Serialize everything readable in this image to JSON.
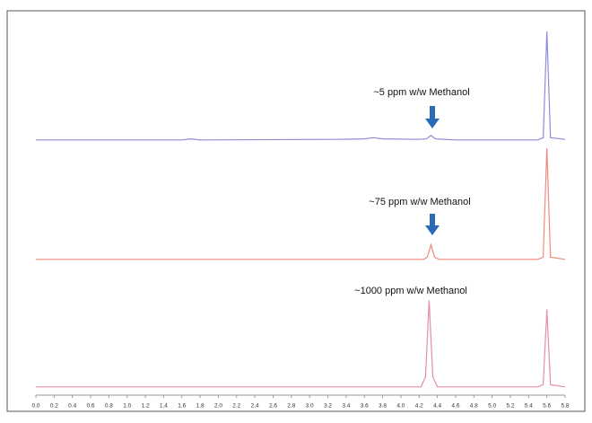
{
  "chart_data": [
    {
      "type": "line",
      "annotation": "~5 ppm w/w Methanol",
      "x": [
        0.0,
        1.6,
        1.7,
        1.8,
        3.3,
        3.6,
        3.7,
        3.8,
        4.2,
        4.28,
        4.33,
        4.38,
        4.6,
        4.7,
        5.5,
        5.56,
        5.6,
        5.64,
        5.8
      ],
      "series": [
        {
          "color": "#8c8cd8",
          "values": [
            1,
            1,
            2,
            1,
            1.5,
            2,
            3,
            2,
            1.5,
            2,
            5,
            2,
            1,
            1,
            1,
            3,
            100,
            3,
            1.5
          ]
        }
      ],
      "xlim": [
        0,
        5.8
      ],
      "ylim": [
        0,
        100
      ]
    },
    {
      "type": "line",
      "annotation": "~75 ppm w/w Methanol",
      "x": [
        0.0,
        4.25,
        4.29,
        4.33,
        4.37,
        4.42,
        5.5,
        5.56,
        5.6,
        5.64,
        5.8
      ],
      "series": [
        {
          "color": "#f08a80",
          "values": [
            1,
            1,
            3,
            14,
            3,
            1,
            1,
            3,
            100,
            3,
            1
          ]
        }
      ],
      "xlim": [
        0,
        5.8
      ],
      "ylim": [
        0,
        100
      ]
    },
    {
      "type": "line",
      "annotation": "~1000 ppm w/w Methanol",
      "x": [
        0.0,
        4.22,
        4.27,
        4.31,
        4.35,
        4.4,
        5.5,
        5.56,
        5.6,
        5.64,
        5.8
      ],
      "series": [
        {
          "color": "#e38db2",
          "values": [
            1,
            1,
            10,
            78,
            10,
            1,
            1,
            3,
            70,
            3,
            1
          ]
        }
      ],
      "xlim": [
        0,
        5.8
      ],
      "ylim": [
        0,
        100
      ],
      "xticks": [
        {
          "value": 0,
          "label": "0.0"
        },
        0.2,
        0.4,
        0.6,
        0.8,
        {
          "value": 1,
          "label": "1.0"
        },
        1.2,
        1.4,
        1.6,
        1.8,
        {
          "value": 2,
          "label": "2.0"
        },
        2.2,
        2.4,
        2.6,
        2.8,
        {
          "value": 3,
          "label": "3.0"
        },
        3.2,
        3.4,
        3.6,
        3.8,
        {
          "value": 4,
          "label": "4.0"
        },
        4.2,
        4.4,
        4.6,
        4.8,
        {
          "value": 5,
          "label": "5.0"
        },
        5.2,
        5.4,
        5.6,
        5.8
      ]
    }
  ]
}
